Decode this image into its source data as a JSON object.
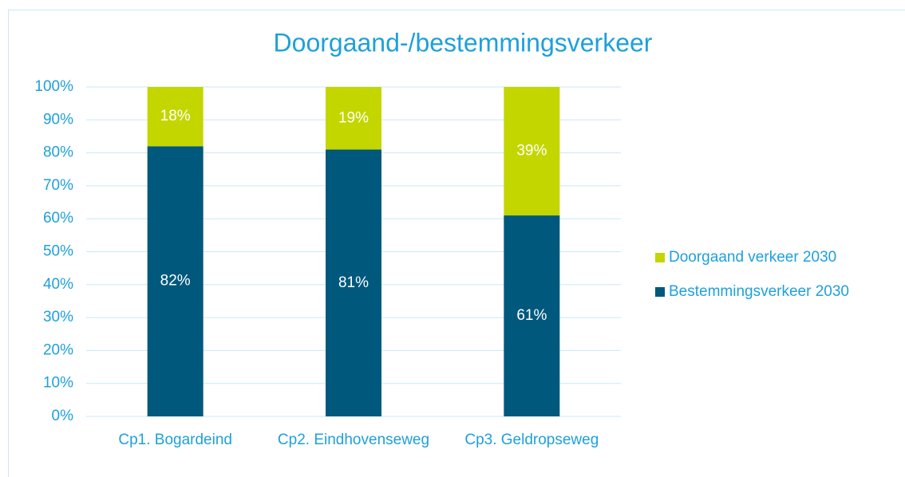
{
  "chart_data": {
    "type": "stacked_bar",
    "title": "Doorgaand-/bestemmingsverkeer",
    "categories": [
      "Cp1. Bogardeind",
      "Cp2. Eindhovenseweg",
      "Cp3. Geldropseweg"
    ],
    "series": [
      {
        "name": "Bestemmingsverkeer 2030",
        "color": "#00587c",
        "values": [
          82,
          81,
          61
        ],
        "value_labels": [
          "82%",
          "81%",
          "61%"
        ]
      },
      {
        "name": "Doorgaand verkeer 2030",
        "color": "#c4d600",
        "values": [
          18,
          19,
          39
        ],
        "value_labels": [
          "18%",
          "19%",
          "39%"
        ]
      }
    ],
    "ylim": [
      0,
      100
    ],
    "yticks": [
      {
        "value": 0,
        "label": "0%"
      },
      {
        "value": 10,
        "label": "10%"
      },
      {
        "value": 20,
        "label": "20%"
      },
      {
        "value": 30,
        "label": "30%"
      },
      {
        "value": 40,
        "label": "40%"
      },
      {
        "value": 50,
        "label": "50%"
      },
      {
        "value": 60,
        "label": "60%"
      },
      {
        "value": 70,
        "label": "70%"
      },
      {
        "value": 80,
        "label": "80%"
      },
      {
        "value": 90,
        "label": "90%"
      },
      {
        "value": 100,
        "label": "100%"
      }
    ],
    "grid": true,
    "legend": "right"
  }
}
